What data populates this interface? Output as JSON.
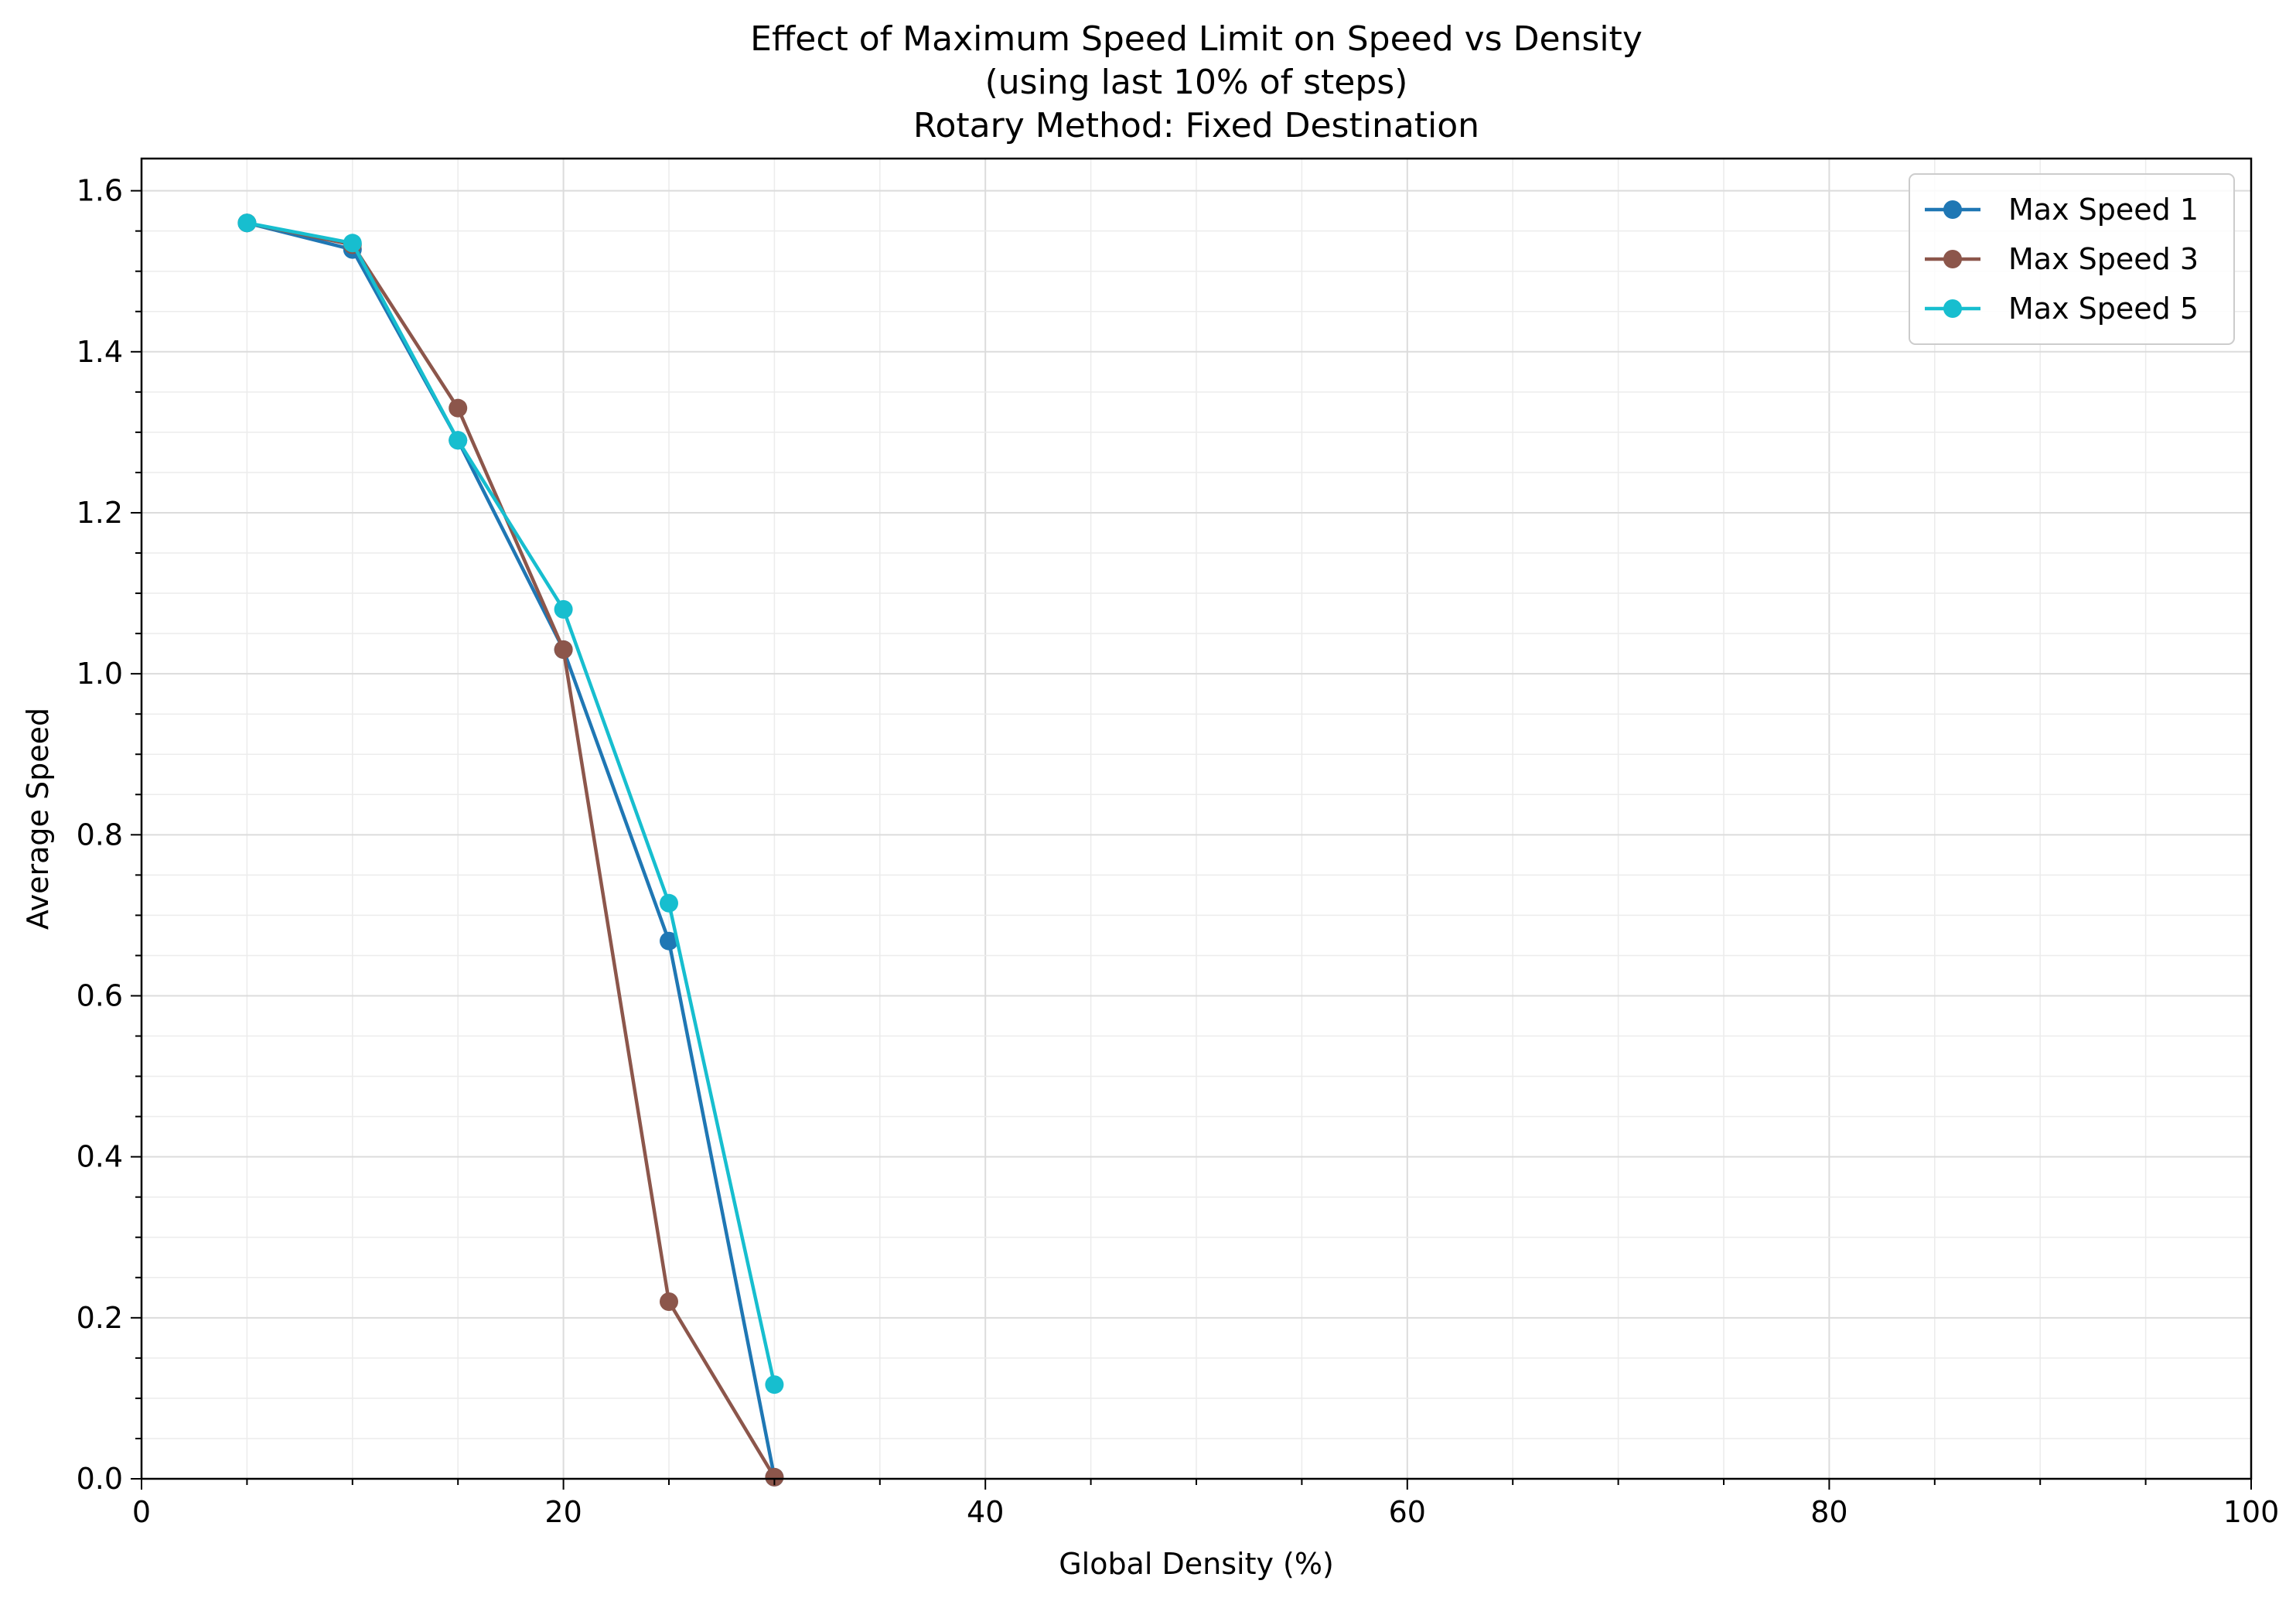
{
  "chart_data": {
    "type": "line",
    "title_lines": [
      "Effect of Maximum Speed Limit on Speed vs Density",
      "(using last 10% of steps)",
      "Rotary Method: Fixed Destination"
    ],
    "xlabel": "Global Density (%)",
    "ylabel": "Average Speed",
    "xlim": [
      0,
      100
    ],
    "ylim": [
      0,
      1.64
    ],
    "x_ticks": [
      0,
      20,
      40,
      60,
      80,
      100
    ],
    "x_tick_labels": [
      "0",
      "20",
      "40",
      "60",
      "80",
      "100"
    ],
    "x_minor_step": 5,
    "y_ticks": [
      0.0,
      0.2,
      0.4,
      0.6,
      0.8,
      1.0,
      1.2,
      1.4,
      1.6
    ],
    "y_tick_labels": [
      "0.0",
      "0.2",
      "0.4",
      "0.6",
      "0.8",
      "1.0",
      "1.2",
      "1.4",
      "1.6"
    ],
    "y_minor_step": 0.05,
    "grid": true,
    "legend_position": "top-right",
    "series": [
      {
        "name": "Max Speed 1",
        "color": "#1f77b4",
        "points": [
          [
            5,
            1.56
          ],
          [
            10,
            1.527
          ],
          [
            15,
            1.29
          ],
          [
            20,
            1.03
          ],
          [
            25,
            0.668
          ],
          [
            30,
            0.002
          ]
        ]
      },
      {
        "name": "Max Speed 3",
        "color": "#8c564b",
        "points": [
          [
            5,
            1.56
          ],
          [
            10,
            1.533
          ],
          [
            15,
            1.33
          ],
          [
            20,
            1.03
          ],
          [
            25,
            0.22
          ],
          [
            30,
            0.002
          ]
        ]
      },
      {
        "name": "Max Speed 5",
        "color": "#17becf",
        "points": [
          [
            5,
            1.56
          ],
          [
            10,
            1.535
          ],
          [
            15,
            1.29
          ],
          [
            20,
            1.08
          ],
          [
            25,
            0.715
          ],
          [
            30,
            0.117
          ]
        ]
      }
    ]
  }
}
